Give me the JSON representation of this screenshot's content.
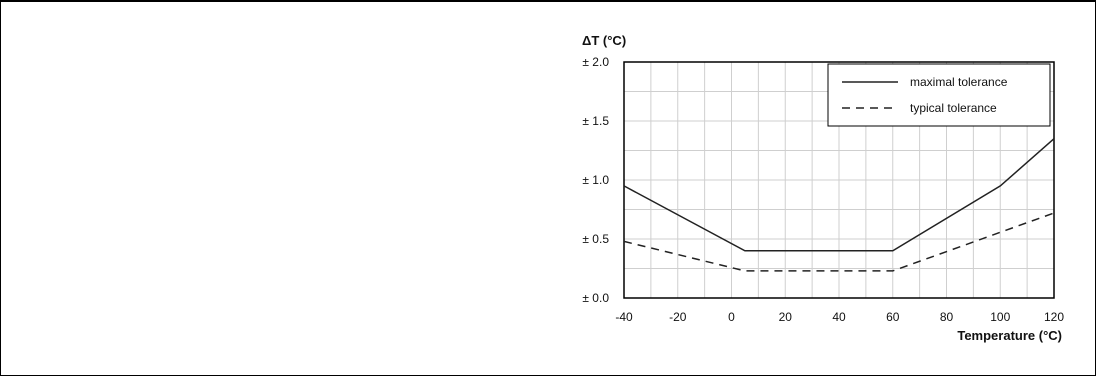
{
  "chart_data": {
    "type": "line",
    "xlabel": "Temperature (°C)",
    "ylabel": "ΔT (°C)",
    "xlim": [
      -40,
      120
    ],
    "ylim": [
      0,
      2.0
    ],
    "x_ticks": [
      "-40",
      "-20",
      "0",
      "20",
      "40",
      "60",
      "80",
      "100",
      "120"
    ],
    "y_ticks": [
      "± 0.0",
      "± 0.5",
      "± 1.0",
      "± 1.5",
      "± 2.0"
    ],
    "grid": true,
    "legend_position": "top-right",
    "series": [
      {
        "name": "maximal tolerance",
        "style": "solid",
        "x": [
          -40,
          5,
          60,
          100,
          120
        ],
        "y": [
          0.95,
          0.4,
          0.4,
          0.95,
          1.35
        ]
      },
      {
        "name": "typical tolerance",
        "style": "dashed",
        "x": [
          -40,
          5,
          60,
          120
        ],
        "y": [
          0.48,
          0.23,
          0.23,
          0.72
        ]
      }
    ]
  }
}
